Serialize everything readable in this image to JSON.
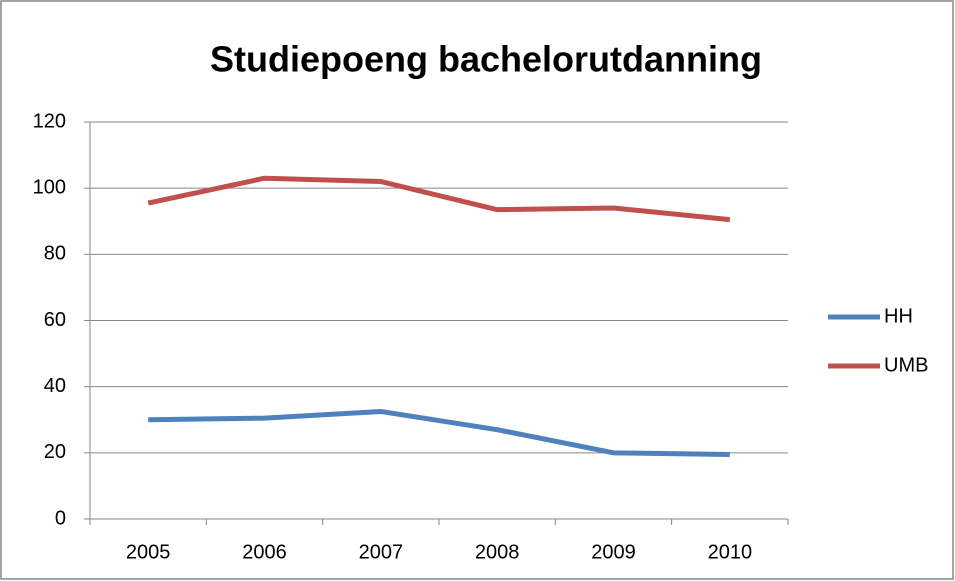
{
  "chart_data": {
    "type": "line",
    "title": "Studiepoeng bachelorutdanning",
    "categories": [
      "2005",
      "2006",
      "2007",
      "2008",
      "2009",
      "2010"
    ],
    "series": [
      {
        "name": "HH",
        "color": "#4f81bd",
        "values": [
          30,
          30.5,
          32.5,
          27,
          20,
          19.5
        ]
      },
      {
        "name": "UMB",
        "color": "#c0504d",
        "values": [
          95.5,
          103,
          102,
          93.5,
          94,
          90.5
        ]
      }
    ],
    "ylim": [
      0,
      120
    ],
    "yticks": [
      0,
      20,
      40,
      60,
      80,
      100,
      120
    ],
    "grid": true,
    "legend": "right"
  }
}
